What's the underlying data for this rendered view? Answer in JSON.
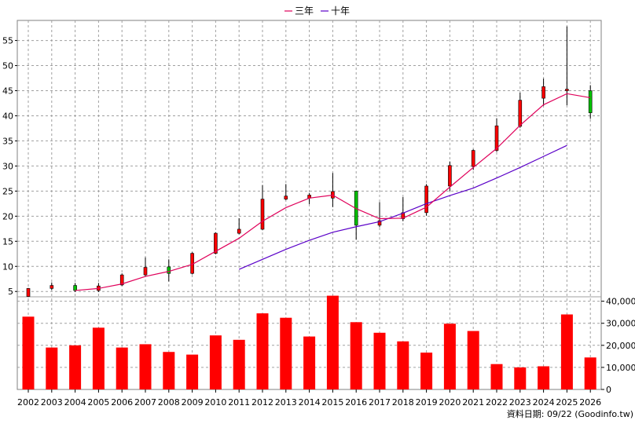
{
  "legend": {
    "label_3y": "三年",
    "label_10y": "十年"
  },
  "source_text": "資料日期: 09/22 (Goodinfo.tw)",
  "colors": {
    "up": "#ff0000",
    "down": "#00c000",
    "ma3": "#e0005a",
    "ma10": "#5a00c8",
    "volume": "#ff0000",
    "grid": "#a0a0a0"
  },
  "chart_data": {
    "type": "candlestick_with_volume",
    "x": [
      "2002",
      "2003",
      "2004",
      "2005",
      "2006",
      "2007",
      "2008",
      "2009",
      "2010",
      "2011",
      "2012",
      "2013",
      "2014",
      "2015",
      "2016",
      "2017",
      "2018",
      "2019",
      "2020",
      "2021",
      "2022",
      "2023",
      "2024",
      "2025",
      "2026"
    ],
    "price_ylim": [
      3,
      59
    ],
    "price_ticks": [
      5,
      10,
      15,
      20,
      25,
      30,
      35,
      40,
      45,
      50,
      55
    ],
    "candles": [
      {
        "open": 4.0,
        "close": 5.6,
        "high": 5.7,
        "low": 3.9
      },
      {
        "open": 5.6,
        "close": 6.2,
        "high": 6.8,
        "low": 5.3
      },
      {
        "open": 6.2,
        "close": 5.2,
        "high": 6.7,
        "low": 4.9
      },
      {
        "open": 5.2,
        "close": 6.1,
        "high": 6.7,
        "low": 4.9
      },
      {
        "open": 6.3,
        "close": 8.3,
        "high": 8.6,
        "low": 6.1
      },
      {
        "open": 8.3,
        "close": 9.8,
        "high": 11.8,
        "low": 8.1
      },
      {
        "open": 9.9,
        "close": 8.6,
        "high": 11.4,
        "low": 7.0
      },
      {
        "open": 8.6,
        "close": 12.6,
        "high": 12.8,
        "low": 8.4
      },
      {
        "open": 12.6,
        "close": 16.6,
        "high": 16.8,
        "low": 12.4
      },
      {
        "open": 16.6,
        "close": 17.4,
        "high": 19.6,
        "low": 16.4
      },
      {
        "open": 17.4,
        "close": 23.4,
        "high": 26.2,
        "low": 17.2
      },
      {
        "open": 23.4,
        "close": 24.0,
        "high": 26.4,
        "low": 23.2
      },
      {
        "open": 23.6,
        "close": 24.2,
        "high": 24.6,
        "low": 22.4
      },
      {
        "open": 23.6,
        "close": 24.9,
        "high": 28.6,
        "low": 21.8
      },
      {
        "open": 25.0,
        "close": 18.2,
        "high": 25.0,
        "low": 15.3
      },
      {
        "open": 18.2,
        "close": 19.1,
        "high": 22.8,
        "low": 17.8
      },
      {
        "open": 19.5,
        "close": 20.7,
        "high": 23.8,
        "low": 19.0
      },
      {
        "open": 20.7,
        "close": 26.0,
        "high": 26.4,
        "low": 20.1
      },
      {
        "open": 26.0,
        "close": 30.1,
        "high": 30.9,
        "low": 25.0
      },
      {
        "open": 29.9,
        "close": 33.1,
        "high": 33.3,
        "low": 29.2
      },
      {
        "open": 33.1,
        "close": 38.0,
        "high": 39.5,
        "low": 32.8
      },
      {
        "open": 37.9,
        "close": 43.1,
        "high": 44.6,
        "low": 37.6
      },
      {
        "open": 43.5,
        "close": 45.8,
        "high": 47.4,
        "low": 42.0
      },
      {
        "open": 45.0,
        "close": 45.3,
        "high": 57.8,
        "low": 42.1
      },
      {
        "open": 45.0,
        "close": 40.6,
        "high": 46.1,
        "low": 39.4
      }
    ],
    "ma_3y": {
      "name": "三年",
      "start_index": 2,
      "values": [
        5.2,
        5.6,
        6.5,
        8.0,
        9.0,
        10.4,
        13.0,
        15.6,
        19.0,
        21.7,
        23.6,
        24.2,
        21.5,
        19.5,
        19.6,
        21.8,
        25.8,
        29.7,
        33.5,
        38.1,
        42.2,
        44.4,
        43.6
      ]
    },
    "ma_10y": {
      "name": "十年",
      "start_index": 9,
      "values": [
        9.4,
        11.4,
        13.4,
        15.2,
        16.8,
        17.9,
        18.9,
        20.6,
        22.5,
        24.1,
        25.6,
        27.6,
        29.7,
        31.9,
        34.1
      ]
    },
    "volume_ylim": [
      0,
      42000
    ],
    "volume_ticks": [
      0,
      10000,
      20000,
      30000,
      40000
    ],
    "volume_tick_labels": [
      "0",
      "10,000",
      "20,000",
      "30,000",
      "40,000"
    ],
    "volume": [
      33000,
      19000,
      20000,
      28000,
      19000,
      20500,
      17000,
      15800,
      24500,
      22500,
      34500,
      32500,
      24000,
      42500,
      30500,
      25700,
      21800,
      16700,
      29800,
      26500,
      11500,
      10000,
      10500,
      34000,
      14500
    ]
  }
}
